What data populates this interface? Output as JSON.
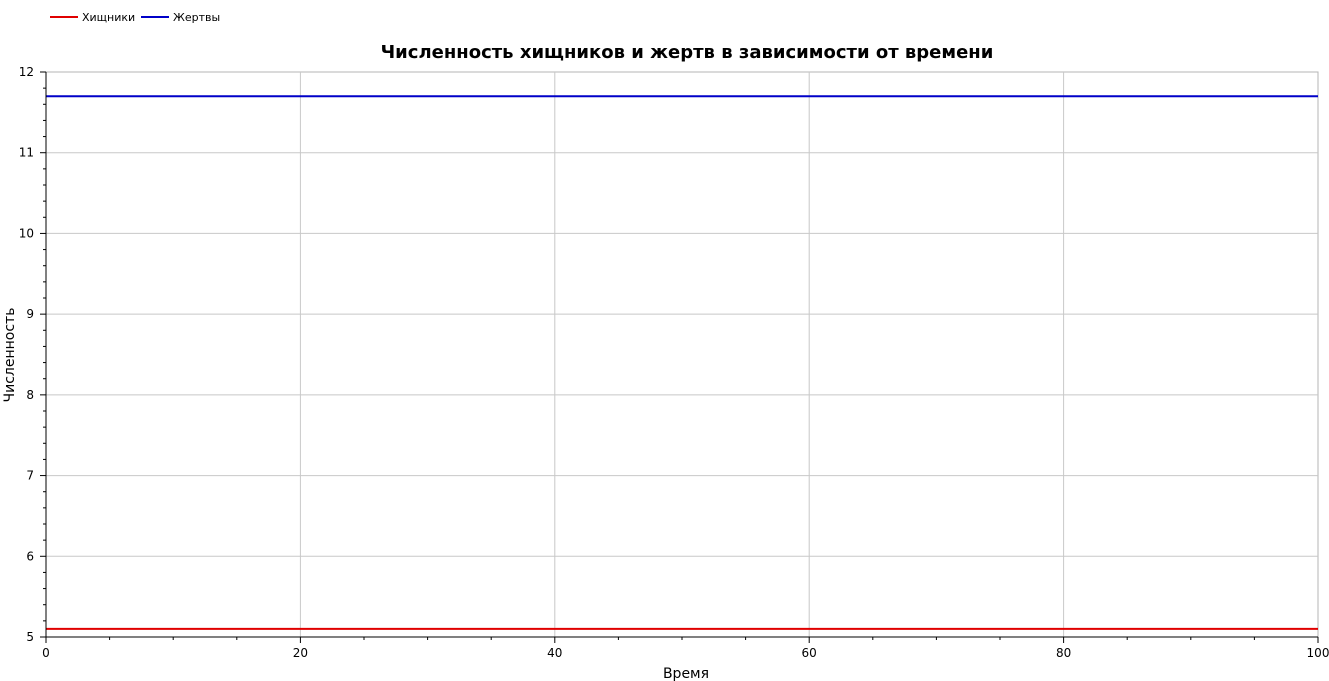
{
  "chart_data": {
    "type": "line",
    "title": "Численность хищников и жертв в зависимости от времени",
    "xlabel": "Время",
    "ylabel": "Численность",
    "xlim": [
      0,
      100
    ],
    "ylim": [
      5,
      12
    ],
    "x_ticks": [
      "0",
      "20",
      "40",
      "60",
      "80",
      "100"
    ],
    "y_ticks": [
      "5",
      "6",
      "7",
      "8",
      "9",
      "10",
      "11",
      "12"
    ],
    "grid": true,
    "legend_position": "top-left",
    "series": [
      {
        "name": "Хищники",
        "color": "#e00000",
        "x": [
          0,
          100
        ],
        "y": [
          5.1,
          5.1
        ]
      },
      {
        "name": "Жертвы",
        "color": "#0000c8",
        "x": [
          0,
          100
        ],
        "y": [
          11.7,
          11.7
        ]
      }
    ]
  }
}
